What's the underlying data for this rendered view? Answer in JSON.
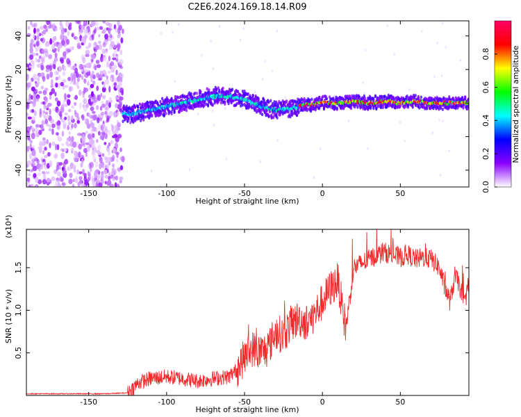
{
  "title": "C2E6.2024.169.18.14.R09",
  "chart_data": [
    {
      "type": "heatmap",
      "xlabel": "Height of straight line (km)",
      "ylabel": "Frequency (Hz)",
      "xlim": [
        -190,
        94
      ],
      "ylim": [
        -50,
        49
      ],
      "xticks": [
        -150,
        -100,
        -50,
        0,
        50
      ],
      "yticks": [
        -40,
        -20,
        0,
        20,
        40
      ],
      "colorbar": {
        "label": "Normalized spectral amplitude",
        "range": [
          0,
          1
        ],
        "ticks": [
          "0.0",
          "0.2",
          "0.4",
          "0.6",
          "0.8"
        ],
        "colormap": [
          "#ffffff",
          "#8a00ff",
          "#0000ff",
          "#00ffff",
          "#00ff00",
          "#ffff00",
          "#ff0000",
          "#ff0066"
        ]
      },
      "noise_region_x": [
        -190,
        -128
      ],
      "signal_track": [
        {
          "x": -130,
          "y": -7
        },
        {
          "x": -120,
          "y": -6
        },
        {
          "x": -110,
          "y": -4
        },
        {
          "x": -100,
          "y": -2
        },
        {
          "x": -90,
          "y": 0
        },
        {
          "x": -80,
          "y": 2
        },
        {
          "x": -70,
          "y": 4
        },
        {
          "x": -60,
          "y": 4
        },
        {
          "x": -50,
          "y": 2
        },
        {
          "x": -40,
          "y": -2
        },
        {
          "x": -30,
          "y": -4
        },
        {
          "x": -20,
          "y": -3
        },
        {
          "x": -10,
          "y": -1
        },
        {
          "x": 0,
          "y": 0
        },
        {
          "x": 10,
          "y": 0
        },
        {
          "x": 20,
          "y": 1
        },
        {
          "x": 30,
          "y": 0
        },
        {
          "x": 40,
          "y": 1
        },
        {
          "x": 50,
          "y": 0
        },
        {
          "x": 60,
          "y": 1
        },
        {
          "x": 70,
          "y": 0
        },
        {
          "x": 80,
          "y": 0
        },
        {
          "x": 93,
          "y": 0
        }
      ]
    },
    {
      "type": "line",
      "xlabel": "Height of straight line (km)",
      "ylabel": "SNR (10 * v/v)",
      "y_multiplier": "(x10⁴)",
      "xlim": [
        -190,
        94
      ],
      "ylim": [
        0,
        1.95
      ],
      "xticks": [
        -150,
        -100,
        -50,
        0,
        50
      ],
      "yticks": [
        0.5,
        1.0,
        1.5
      ],
      "ytick_labels": [
        "0.5",
        "1.0",
        "1.5"
      ],
      "color": "#ee2a2a",
      "series": [
        {
          "values": [
            {
              "x": -190,
              "y": 0.02
            },
            {
              "x": -180,
              "y": 0.02
            },
            {
              "x": -160,
              "y": 0.02
            },
            {
              "x": -140,
              "y": 0.02
            },
            {
              "x": -125,
              "y": 0.03
            },
            {
              "x": -118,
              "y": 0.15
            },
            {
              "x": -110,
              "y": 0.2
            },
            {
              "x": -100,
              "y": 0.22
            },
            {
              "x": -90,
              "y": 0.2
            },
            {
              "x": -80,
              "y": 0.17
            },
            {
              "x": -70,
              "y": 0.2
            },
            {
              "x": -60,
              "y": 0.22
            },
            {
              "x": -55,
              "y": 0.3
            },
            {
              "x": -50,
              "y": 0.45
            },
            {
              "x": -45,
              "y": 0.55
            },
            {
              "x": -40,
              "y": 0.5
            },
            {
              "x": -35,
              "y": 0.55
            },
            {
              "x": -30,
              "y": 0.75
            },
            {
              "x": -25,
              "y": 0.7
            },
            {
              "x": -20,
              "y": 0.85
            },
            {
              "x": -15,
              "y": 0.9
            },
            {
              "x": -10,
              "y": 0.85
            },
            {
              "x": -5,
              "y": 0.95
            },
            {
              "x": 0,
              "y": 1.1
            },
            {
              "x": 5,
              "y": 1.25
            },
            {
              "x": 10,
              "y": 1.35
            },
            {
              "x": 13,
              "y": 1.0
            },
            {
              "x": 15,
              "y": 0.8
            },
            {
              "x": 18,
              "y": 1.2
            },
            {
              "x": 20,
              "y": 1.5
            },
            {
              "x": 25,
              "y": 1.55
            },
            {
              "x": 30,
              "y": 1.6
            },
            {
              "x": 35,
              "y": 1.65
            },
            {
              "x": 40,
              "y": 1.68
            },
            {
              "x": 45,
              "y": 1.65
            },
            {
              "x": 50,
              "y": 1.62
            },
            {
              "x": 55,
              "y": 1.65
            },
            {
              "x": 60,
              "y": 1.6
            },
            {
              "x": 65,
              "y": 1.62
            },
            {
              "x": 70,
              "y": 1.6
            },
            {
              "x": 75,
              "y": 1.5
            },
            {
              "x": 78,
              "y": 1.3
            },
            {
              "x": 82,
              "y": 1.1
            },
            {
              "x": 85,
              "y": 1.4
            },
            {
              "x": 88,
              "y": 1.3
            },
            {
              "x": 91,
              "y": 1.05
            },
            {
              "x": 94,
              "y": 1.35
            }
          ]
        }
      ]
    }
  ]
}
